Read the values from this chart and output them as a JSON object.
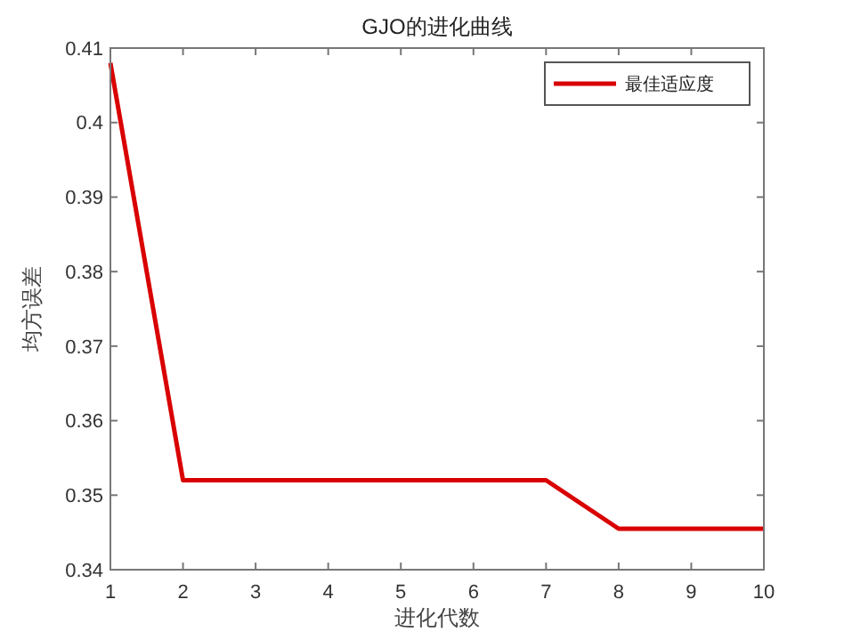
{
  "chart_data": {
    "type": "line",
    "title": "GJO的进化曲线",
    "xlabel": "进化代数",
    "ylabel": "均方误差",
    "x": [
      1,
      2,
      3,
      4,
      5,
      6,
      7,
      8,
      9,
      10
    ],
    "series": [
      {
        "name": "最佳适应度",
        "color": "#d90000",
        "values": [
          0.408,
          0.352,
          0.352,
          0.352,
          0.352,
          0.352,
          0.352,
          0.3455,
          0.3455,
          0.3455
        ]
      }
    ],
    "xlim": [
      1,
      10
    ],
    "xticks": [
      1,
      2,
      3,
      4,
      5,
      6,
      7,
      8,
      9,
      10
    ],
    "ylim": [
      0.34,
      0.41
    ],
    "yticks": [
      0.34,
      0.35,
      0.36,
      0.37,
      0.38,
      0.39,
      0.4,
      0.41
    ],
    "grid": false,
    "legend": "top right",
    "marker": "none",
    "line_style": "solid"
  }
}
